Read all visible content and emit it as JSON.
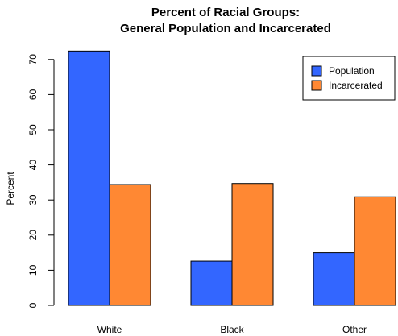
{
  "chart_data": {
    "type": "bar",
    "title_lines": [
      "Percent of Racial Groups:",
      "General Population and Incarcerated"
    ],
    "xlabel": "",
    "ylabel": "Percent",
    "categories": [
      "White",
      "Black",
      "Other"
    ],
    "series": [
      {
        "name": "Population",
        "values": [
          72.4,
          12.6,
          15.0
        ],
        "color": "#3366ff"
      },
      {
        "name": "Incarcerated",
        "values": [
          34.4,
          34.7,
          30.9
        ],
        "color": "#ff8833"
      }
    ],
    "ylim": [
      0,
      70
    ],
    "yticks": [
      0,
      10,
      20,
      30,
      40,
      50,
      60,
      70
    ],
    "grid": false,
    "legend_position": "top-right",
    "bar_border_color": "#000000"
  }
}
